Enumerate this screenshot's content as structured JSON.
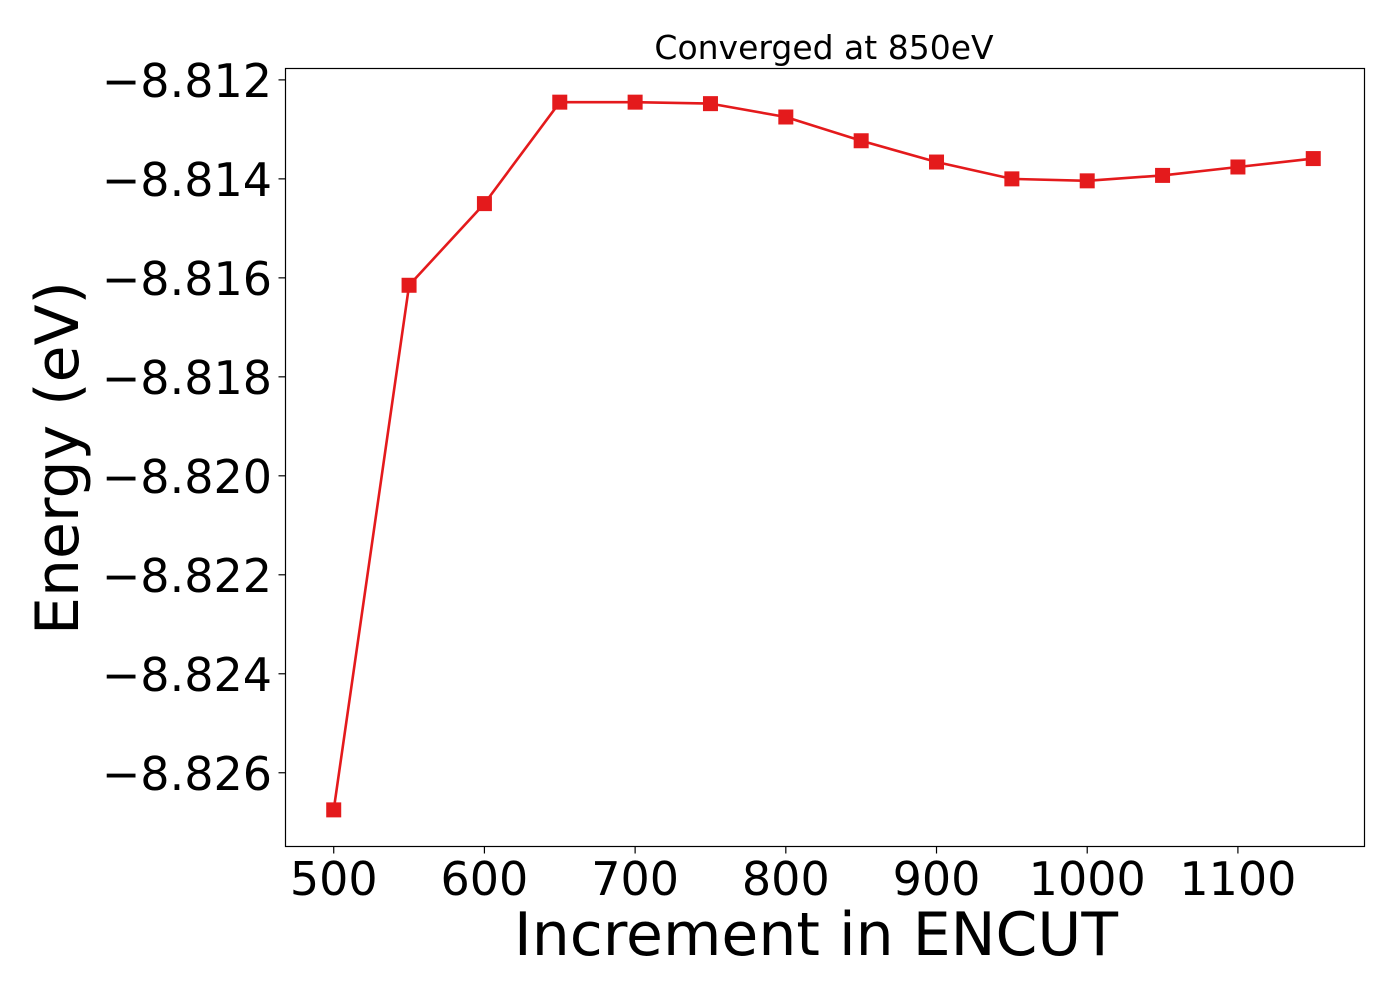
{
  "chart_data": {
    "type": "line",
    "title": "Converged at 850eV",
    "xlabel": "Increment in ENCUT",
    "ylabel": "Energy (eV)",
    "x": [
      500,
      550,
      600,
      650,
      700,
      750,
      800,
      850,
      900,
      950,
      1000,
      1050,
      1100,
      1150
    ],
    "series": [
      {
        "values": [
          -8.82675,
          -8.81615,
          -8.8145,
          -8.81245,
          -8.81245,
          -8.81248,
          -8.81275,
          -8.81323,
          -8.81366,
          -8.814,
          -8.81404,
          -8.81393,
          -8.81376,
          -8.81359
        ],
        "color": "#e41a1c",
        "marker": "square"
      }
    ],
    "xlim": [
      468,
      1184
    ],
    "ylim": [
      -8.82749,
      -8.81177
    ],
    "xticks": [
      500,
      600,
      700,
      800,
      900,
      1000,
      1100
    ],
    "xtick_labels": [
      "500",
      "600",
      "700",
      "800",
      "900",
      "1000",
      "1100"
    ],
    "yticks": [
      -8.812,
      -8.814,
      -8.816,
      -8.818,
      -8.82,
      -8.822,
      -8.824,
      -8.826
    ],
    "ytick_labels": [
      "−8.812",
      "−8.814",
      "−8.816",
      "−8.818",
      "−8.820",
      "−8.822",
      "−8.824",
      "−8.826"
    ],
    "grid": false,
    "legend": "none"
  }
}
